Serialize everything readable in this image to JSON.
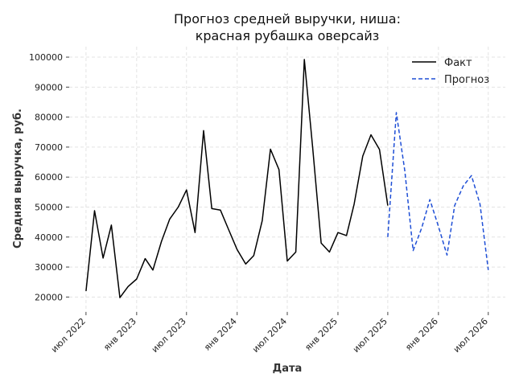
{
  "chart_data": {
    "type": "line",
    "title_line1": "Прогноз средней выручки, ниша:",
    "title_line2": "красная рубашка оверсайз",
    "xlabel": "Дата",
    "ylabel": "Средняя выручка, руб.",
    "ylim": [
      15000,
      103500
    ],
    "yticks": [
      20000,
      30000,
      40000,
      50000,
      60000,
      70000,
      80000,
      90000,
      100000
    ],
    "xlim": [
      "2022-05-01",
      "2026-09-01"
    ],
    "xticks": [
      {
        "date": "2022-07-01",
        "label": "июл 2022"
      },
      {
        "date": "2023-01-01",
        "label": "янв 2023"
      },
      {
        "date": "2023-07-01",
        "label": "июл 2023"
      },
      {
        "date": "2024-01-01",
        "label": "янв 2024"
      },
      {
        "date": "2024-07-01",
        "label": "июл 2024"
      },
      {
        "date": "2025-01-01",
        "label": "янв 2025"
      },
      {
        "date": "2025-07-01",
        "label": "июл 2025"
      },
      {
        "date": "2026-01-01",
        "label": "янв 2026"
      },
      {
        "date": "2026-07-01",
        "label": "июл 2026"
      }
    ],
    "grid": true,
    "legend_position": "top-right",
    "series": [
      {
        "name": "Факт",
        "color": "#000000",
        "style": "solid",
        "x": [
          "2022-07-01",
          "2022-08-01",
          "2022-09-01",
          "2022-10-01",
          "2022-11-01",
          "2022-12-01",
          "2023-01-01",
          "2023-02-01",
          "2023-03-01",
          "2023-04-01",
          "2023-05-01",
          "2023-06-01",
          "2023-07-01",
          "2023-08-01",
          "2023-09-01",
          "2023-10-01",
          "2023-11-01",
          "2023-12-01",
          "2024-01-01",
          "2024-02-01",
          "2024-03-01",
          "2024-04-01",
          "2024-05-01",
          "2024-06-01",
          "2024-07-01",
          "2024-08-01",
          "2024-09-01",
          "2024-10-01",
          "2024-11-01",
          "2024-12-01",
          "2025-01-01",
          "2025-02-01",
          "2025-03-01",
          "2025-04-01",
          "2025-05-01",
          "2025-06-01",
          "2025-07-01"
        ],
        "y": [
          22000,
          48800,
          33000,
          44000,
          19800,
          23500,
          26000,
          32800,
          29000,
          38500,
          46000,
          50000,
          55700,
          41500,
          75500,
          49500,
          49000,
          42500,
          35800,
          31000,
          33800,
          45500,
          69300,
          62500,
          32000,
          35000,
          99200,
          70000,
          38000,
          35000,
          41500,
          40500,
          51000,
          67000,
          74100,
          69200,
          50500
        ]
      },
      {
        "name": "Прогноз",
        "color": "#1f4fd6",
        "style": "dashed",
        "x": [
          "2025-07-01",
          "2025-08-01",
          "2025-09-01",
          "2025-10-01",
          "2025-11-01",
          "2025-12-01",
          "2026-01-01",
          "2026-02-01",
          "2026-03-01",
          "2026-04-01",
          "2026-05-01",
          "2026-06-01",
          "2026-07-01"
        ],
        "y": [
          40000,
          81500,
          62000,
          35500,
          43000,
          52500,
          43500,
          34000,
          50500,
          57000,
          60500,
          51000,
          29000
        ]
      }
    ]
  }
}
